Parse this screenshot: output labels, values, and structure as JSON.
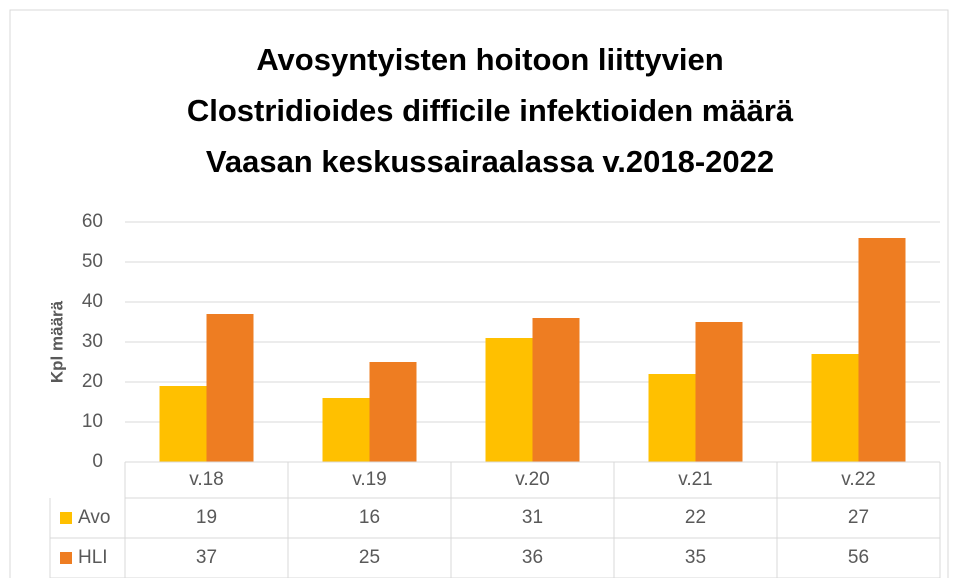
{
  "chart_data": {
    "type": "bar",
    "title": [
      "Avosyntyisten hoitoon liittyvien",
      "Clostridioides difficile infektioiden määrä",
      "Vaasan keskussairaalassa v.2018-2022"
    ],
    "y_label": "Kpl määrä",
    "categories": [
      "v.18",
      "v.19",
      "v.20",
      "v.21",
      "v.22"
    ],
    "series": [
      {
        "name": "Avo",
        "color": "#FFC000",
        "values": [
          19,
          16,
          31,
          22,
          27
        ]
      },
      {
        "name": "HLI",
        "color": "#EE7D22",
        "values": [
          37,
          25,
          36,
          35,
          56
        ]
      }
    ],
    "ylim": [
      0,
      60
    ],
    "yticks": [
      0,
      10,
      20,
      30,
      40,
      50,
      60
    ],
    "grid": true,
    "data_table": true
  }
}
